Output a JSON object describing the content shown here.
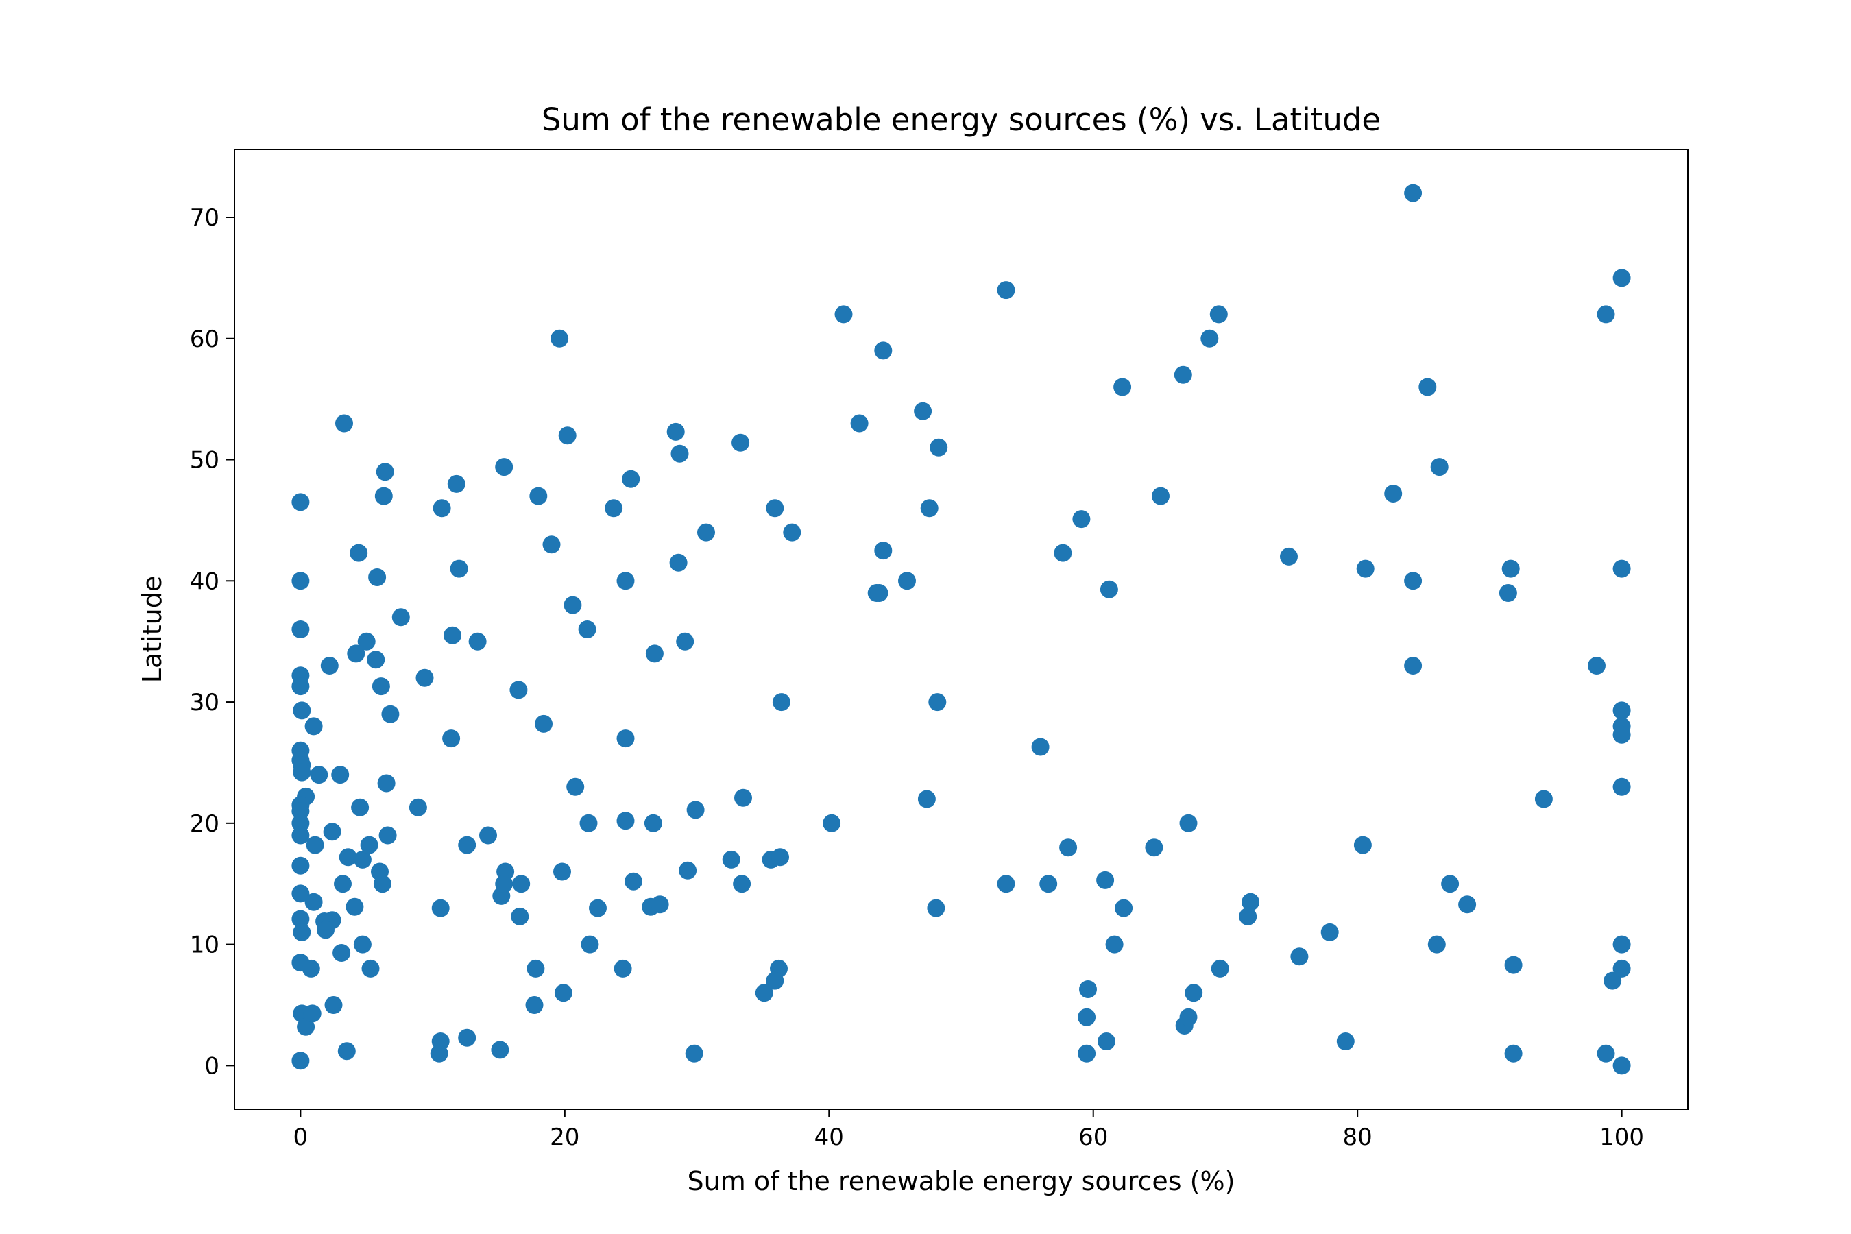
{
  "chart_data": {
    "type": "scatter",
    "title": "Sum of the renewable energy sources (%) vs. Latitude",
    "xlabel": "Sum of the renewable energy sources (%)",
    "ylabel": "Latitude",
    "xlim": [
      -5,
      105
    ],
    "ylim": [
      -3.6,
      75.6
    ],
    "xticks": [
      0,
      20,
      40,
      60,
      80,
      100
    ],
    "yticks": [
      0,
      10,
      20,
      30,
      40,
      50,
      60,
      70
    ],
    "grid": false,
    "legend": "none",
    "color": "#1f77b4",
    "points": [
      [
        0,
        46.5
      ],
      [
        0,
        40
      ],
      [
        0,
        36
      ],
      [
        0,
        32.2
      ],
      [
        0,
        31.3
      ],
      [
        0.1,
        29.3
      ],
      [
        0,
        26
      ],
      [
        0,
        25.2
      ],
      [
        0.1,
        24.8
      ],
      [
        0.1,
        24.2
      ],
      [
        0.4,
        22.2
      ],
      [
        0,
        21.5
      ],
      [
        0,
        21
      ],
      [
        0,
        20
      ],
      [
        0,
        19
      ],
      [
        0,
        16.5
      ],
      [
        0,
        14.2
      ],
      [
        0,
        12.1
      ],
      [
        0.1,
        11
      ],
      [
        0,
        8.5
      ],
      [
        0.1,
        4.3
      ],
      [
        0.4,
        3.2
      ],
      [
        0,
        0.4
      ],
      [
        1,
        28
      ],
      [
        1.4,
        24
      ],
      [
        2.2,
        33
      ],
      [
        2.4,
        19.3
      ],
      [
        1.1,
        18.2
      ],
      [
        1,
        13.5
      ],
      [
        1.8,
        11.9
      ],
      [
        2.4,
        12
      ],
      [
        1.9,
        11.2
      ],
      [
        0.8,
        8
      ],
      [
        0.9,
        4.3
      ],
      [
        2.5,
        5
      ],
      [
        3.3,
        53
      ],
      [
        3,
        24
      ],
      [
        3.2,
        15
      ],
      [
        3.6,
        17.2
      ],
      [
        3.1,
        9.3
      ],
      [
        3.5,
        1.2
      ],
      [
        4.4,
        42.3
      ],
      [
        4.2,
        34
      ],
      [
        5,
        35
      ],
      [
        5.7,
        33.5
      ],
      [
        5.8,
        40.3
      ],
      [
        6.1,
        31.3
      ],
      [
        6.4,
        49
      ],
      [
        6.3,
        47
      ],
      [
        6.8,
        29
      ],
      [
        6.5,
        23.3
      ],
      [
        4.5,
        21.3
      ],
      [
        4.7,
        17
      ],
      [
        5.2,
        18.2
      ],
      [
        6,
        16
      ],
      [
        6.2,
        15
      ],
      [
        6.6,
        19
      ],
      [
        4.1,
        13.1
      ],
      [
        4.7,
        10
      ],
      [
        5.3,
        8
      ],
      [
        7.6,
        37
      ],
      [
        9.4,
        32
      ],
      [
        8.9,
        21.3
      ],
      [
        10.7,
        46
      ],
      [
        11.8,
        48
      ],
      [
        11.5,
        35.5
      ],
      [
        12,
        41
      ],
      [
        11.4,
        27
      ],
      [
        13.4,
        35
      ],
      [
        12.6,
        18.2
      ],
      [
        14.2,
        19
      ],
      [
        10.6,
        13
      ],
      [
        10.6,
        2
      ],
      [
        10.5,
        1
      ],
      [
        12.6,
        2.3
      ],
      [
        15.4,
        49.4
      ],
      [
        15.5,
        16
      ],
      [
        15.2,
        14
      ],
      [
        15.4,
        15
      ],
      [
        16.5,
        31
      ],
      [
        16.6,
        12.3
      ],
      [
        16.7,
        15
      ],
      [
        15.1,
        1.3
      ],
      [
        18,
        47
      ],
      [
        19,
        43
      ],
      [
        18.4,
        28.2
      ],
      [
        19.6,
        60
      ],
      [
        20.2,
        52
      ],
      [
        20.6,
        38
      ],
      [
        21.7,
        36
      ],
      [
        20.8,
        23
      ],
      [
        21.8,
        20
      ],
      [
        19.8,
        16
      ],
      [
        17.8,
        8
      ],
      [
        17.7,
        5
      ],
      [
        19.9,
        6
      ],
      [
        21.9,
        10
      ],
      [
        22.5,
        13
      ],
      [
        23.7,
        46
      ],
      [
        25,
        48.4
      ],
      [
        24.6,
        40
      ],
      [
        24.6,
        27
      ],
      [
        24.6,
        20.2
      ],
      [
        25.2,
        15.2
      ],
      [
        24.4,
        8
      ],
      [
        26.5,
        13.1
      ],
      [
        27.2,
        13.3
      ],
      [
        26.7,
        20
      ],
      [
        26.8,
        34
      ],
      [
        28.4,
        52.3
      ],
      [
        28.7,
        50.5
      ],
      [
        28.6,
        41.5
      ],
      [
        29.1,
        35
      ],
      [
        29.3,
        16.1
      ],
      [
        29.9,
        21.1
      ],
      [
        29.8,
        1
      ],
      [
        30.7,
        44
      ],
      [
        33.3,
        51.4
      ],
      [
        33.5,
        22.1
      ],
      [
        33.4,
        15
      ],
      [
        32.6,
        17
      ],
      [
        35.9,
        46
      ],
      [
        37.2,
        44
      ],
      [
        36.4,
        30
      ],
      [
        35.6,
        17
      ],
      [
        36.3,
        17.2
      ],
      [
        36.2,
        8
      ],
      [
        35.9,
        7
      ],
      [
        35.1,
        6
      ],
      [
        40.2,
        20
      ],
      [
        41.1,
        62
      ],
      [
        42.3,
        53
      ],
      [
        44.1,
        59
      ],
      [
        43.6,
        39
      ],
      [
        43.8,
        39
      ],
      [
        44.1,
        42.5
      ],
      [
        45.9,
        40
      ],
      [
        47.1,
        54
      ],
      [
        48.3,
        51
      ],
      [
        47.6,
        46
      ],
      [
        47.4,
        22
      ],
      [
        48.2,
        30
      ],
      [
        48.1,
        13
      ],
      [
        53.4,
        64
      ],
      [
        53.4,
        15
      ],
      [
        56,
        26.3
      ],
      [
        56.6,
        15
      ],
      [
        57.7,
        42.3
      ],
      [
        58.1,
        18
      ],
      [
        59.1,
        45.1
      ],
      [
        59.6,
        6.3
      ],
      [
        59.5,
        4
      ],
      [
        59.5,
        1
      ],
      [
        62.2,
        56
      ],
      [
        61.2,
        39.3
      ],
      [
        60.9,
        15.3
      ],
      [
        61.6,
        10
      ],
      [
        62.3,
        13
      ],
      [
        61,
        2
      ],
      [
        65.1,
        47
      ],
      [
        64.6,
        18
      ],
      [
        66.8,
        57
      ],
      [
        67.2,
        20
      ],
      [
        66.9,
        3.3
      ],
      [
        67.2,
        4
      ],
      [
        67.6,
        6
      ],
      [
        68.8,
        60
      ],
      [
        69.5,
        62
      ],
      [
        69.6,
        8
      ],
      [
        71.9,
        13.5
      ],
      [
        71.7,
        12.3
      ],
      [
        74.8,
        42
      ],
      [
        75.6,
        9
      ],
      [
        77.9,
        11
      ],
      [
        79.1,
        2
      ],
      [
        80.6,
        41
      ],
      [
        80.4,
        18.2
      ],
      [
        82.7,
        47.2
      ],
      [
        84.2,
        72
      ],
      [
        84.2,
        40
      ],
      [
        84.2,
        33
      ],
      [
        85.3,
        56
      ],
      [
        86.2,
        49.4
      ],
      [
        86,
        10
      ],
      [
        87,
        15
      ],
      [
        88.3,
        13.3
      ],
      [
        91.4,
        39
      ],
      [
        91.6,
        41
      ],
      [
        91.8,
        8.3
      ],
      [
        91.8,
        1
      ],
      [
        94.1,
        22
      ],
      [
        98.1,
        33
      ],
      [
        98.8,
        62
      ],
      [
        98.8,
        1
      ],
      [
        99.3,
        7
      ],
      [
        100,
        65
      ],
      [
        100,
        41
      ],
      [
        100,
        29.3
      ],
      [
        100,
        28
      ],
      [
        100,
        27.3
      ],
      [
        100,
        23
      ],
      [
        100,
        10
      ],
      [
        100,
        8
      ],
      [
        100,
        0
      ]
    ]
  }
}
